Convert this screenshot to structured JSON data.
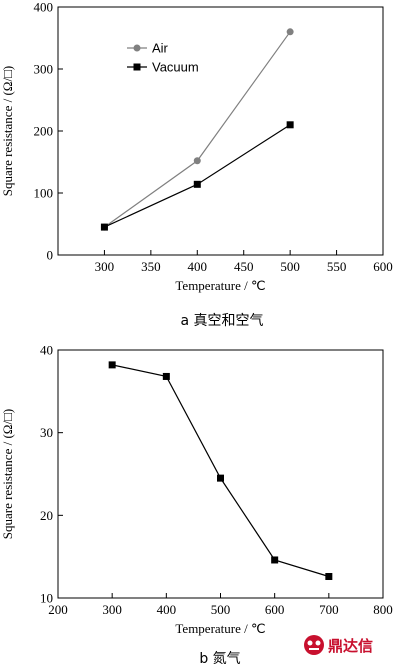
{
  "chart_data": [
    {
      "type": "line",
      "x": [
        300,
        400,
        500
      ],
      "xlim": [
        250,
        600
      ],
      "xticks": [
        300,
        350,
        400,
        450,
        500,
        550,
        600
      ],
      "ylim": [
        0,
        400
      ],
      "yticks": [
        0,
        100,
        200,
        300,
        400
      ],
      "xlabel": "Temperature / ℃",
      "ylabel": "Square resistance / (Ω/□)",
      "legend_position": "top-left",
      "caption": "a  真空和空气",
      "series": [
        {
          "name": "Air",
          "values": [
            45,
            152,
            360
          ],
          "marker": "circle",
          "color": "#808080"
        },
        {
          "name": "Vacuum",
          "values": [
            45,
            114,
            210
          ],
          "marker": "square",
          "color": "#000000"
        }
      ],
      "grid": false
    },
    {
      "type": "line",
      "x": [
        300,
        400,
        500,
        600,
        700
      ],
      "xlim": [
        200,
        800
      ],
      "xticks": [
        200,
        300,
        400,
        500,
        600,
        700,
        800
      ],
      "ylim": [
        10,
        40
      ],
      "yticks": [
        10,
        20,
        30,
        40
      ],
      "xlabel": "Temperature / ℃",
      "ylabel": "Square resistance / (Ω/□)",
      "caption": "b  氮气",
      "series": [
        {
          "values": [
            38.2,
            36.8,
            24.5,
            14.6,
            12.6
          ],
          "marker": "square",
          "color": "#000000"
        }
      ],
      "grid": false
    }
  ],
  "watermark": {
    "text": "鼎达信",
    "icon": "logo-icon"
  }
}
